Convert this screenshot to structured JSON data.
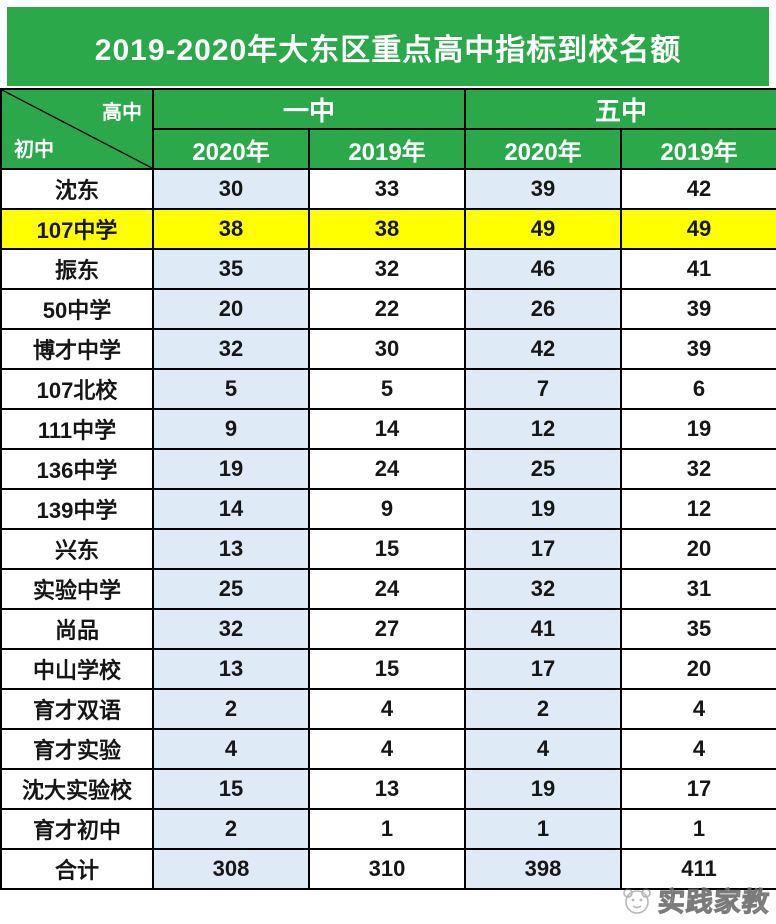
{
  "title": "2019-2020年大东区重点高中指标到校名额",
  "header": {
    "diagonal": {
      "top_right": "高中",
      "bottom_left": "初中"
    },
    "groups": [
      {
        "label": "一中"
      },
      {
        "label": "五中"
      }
    ],
    "year_cols": [
      "2020年",
      "2019年",
      "2020年",
      "2019年"
    ]
  },
  "rows": [
    {
      "school": "沈东",
      "values": [
        30,
        33,
        39,
        42
      ],
      "highlight": false
    },
    {
      "school": "107中学",
      "values": [
        38,
        38,
        49,
        49
      ],
      "highlight": true
    },
    {
      "school": "振东",
      "values": [
        35,
        32,
        46,
        41
      ],
      "highlight": false
    },
    {
      "school": "50中学",
      "values": [
        20,
        22,
        26,
        39
      ],
      "highlight": false
    },
    {
      "school": "博才中学",
      "values": [
        32,
        30,
        42,
        39
      ],
      "highlight": false
    },
    {
      "school": "107北校",
      "values": [
        5,
        5,
        7,
        6
      ],
      "highlight": false
    },
    {
      "school": "111中学",
      "values": [
        9,
        14,
        12,
        19
      ],
      "highlight": false
    },
    {
      "school": "136中学",
      "values": [
        19,
        24,
        25,
        32
      ],
      "highlight": false
    },
    {
      "school": "139中学",
      "values": [
        14,
        9,
        19,
        12
      ],
      "highlight": false
    },
    {
      "school": "兴东",
      "values": [
        13,
        15,
        17,
        20
      ],
      "highlight": false
    },
    {
      "school": "实验中学",
      "values": [
        25,
        24,
        32,
        31
      ],
      "highlight": false
    },
    {
      "school": "尚品",
      "values": [
        32,
        27,
        41,
        35
      ],
      "highlight": false
    },
    {
      "school": "中山学校",
      "values": [
        13,
        15,
        17,
        20
      ],
      "highlight": false
    },
    {
      "school": "育才双语",
      "values": [
        2,
        4,
        2,
        4
      ],
      "highlight": false
    },
    {
      "school": "育才实验",
      "values": [
        4,
        4,
        4,
        4
      ],
      "highlight": false
    },
    {
      "school": "沈大实验校",
      "values": [
        15,
        13,
        19,
        17
      ],
      "highlight": false
    },
    {
      "school": "育才初中",
      "values": [
        2,
        1,
        1,
        1
      ],
      "highlight": false
    }
  ],
  "total_row": {
    "school": "合计",
    "values": [
      308,
      310,
      398,
      411
    ]
  },
  "watermark": {
    "text": "实践家教"
  },
  "colors": {
    "green": "#2aa84a",
    "light_blue": "#deebf7",
    "highlight_yellow": "#ffff00",
    "border": "#000000",
    "title_text": "#ffffff"
  },
  "chart_data": {
    "type": "table",
    "title": "2019-2020年大东区重点高中指标到校名额",
    "row_header": "初中",
    "column_groups": [
      "一中",
      "五中"
    ],
    "columns": [
      "一中 2020年",
      "一中 2019年",
      "五中 2020年",
      "五中 2019年"
    ],
    "categories": [
      "沈东",
      "107中学",
      "振东",
      "50中学",
      "博才中学",
      "107北校",
      "111中学",
      "136中学",
      "139中学",
      "兴东",
      "实验中学",
      "尚品",
      "中山学校",
      "育才双语",
      "育才实验",
      "沈大实验校",
      "育才初中",
      "合计"
    ],
    "series": [
      {
        "name": "一中 2020年",
        "values": [
          30,
          38,
          35,
          20,
          32,
          5,
          9,
          19,
          14,
          13,
          25,
          32,
          13,
          2,
          4,
          15,
          2,
          308
        ]
      },
      {
        "name": "一中 2019年",
        "values": [
          33,
          38,
          32,
          22,
          30,
          5,
          14,
          24,
          9,
          15,
          24,
          27,
          15,
          4,
          4,
          13,
          1,
          310
        ]
      },
      {
        "name": "五中 2020年",
        "values": [
          39,
          49,
          46,
          26,
          42,
          7,
          12,
          25,
          19,
          17,
          32,
          41,
          17,
          2,
          4,
          19,
          1,
          398
        ]
      },
      {
        "name": "五中 2019年",
        "values": [
          42,
          49,
          41,
          39,
          39,
          6,
          19,
          32,
          12,
          20,
          31,
          35,
          20,
          4,
          4,
          17,
          1,
          411
        ]
      }
    ],
    "highlighted_row": "107中学"
  }
}
